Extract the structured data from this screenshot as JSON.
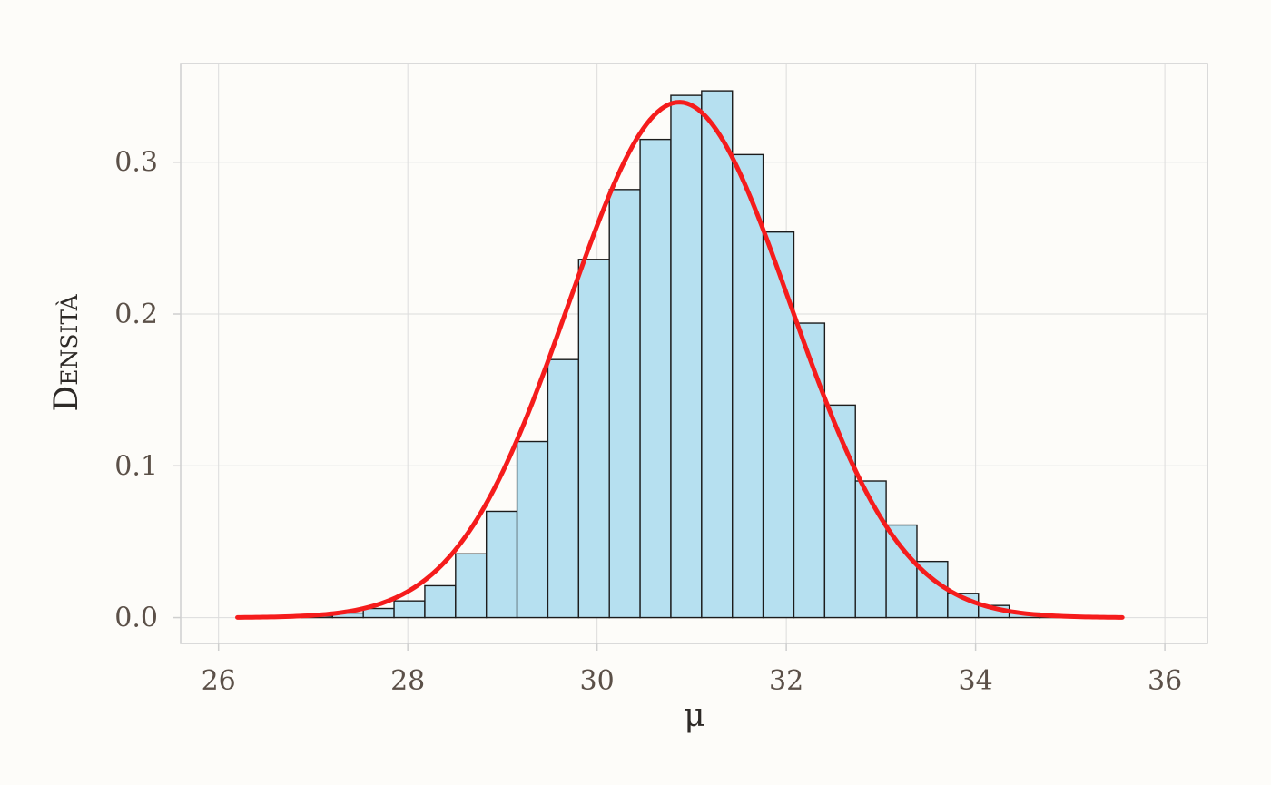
{
  "chart_data": {
    "type": "bar",
    "xlabel": "μ",
    "ylabel": "Densità",
    "xlim": [
      25.6,
      36.45
    ],
    "ylim": [
      -0.017,
      0.365
    ],
    "x_ticks": [
      26,
      28,
      30,
      32,
      34,
      36
    ],
    "x_tick_labels": [
      "26",
      "28",
      "30",
      "32",
      "34",
      "36"
    ],
    "y_ticks": [
      0.0,
      0.1,
      0.2,
      0.3
    ],
    "y_tick_labels": [
      "0.0",
      "0.1",
      "0.2",
      "0.3"
    ],
    "grid": true,
    "bin_width": 0.325,
    "bins": [
      {
        "x0": 26.23,
        "density": 0.0
      },
      {
        "x0": 26.555,
        "density": 0.0
      },
      {
        "x0": 26.88,
        "density": 0.001
      },
      {
        "x0": 27.205,
        "density": 0.003
      },
      {
        "x0": 27.53,
        "density": 0.006
      },
      {
        "x0": 27.855,
        "density": 0.011
      },
      {
        "x0": 28.18,
        "density": 0.021
      },
      {
        "x0": 28.505,
        "density": 0.042
      },
      {
        "x0": 28.83,
        "density": 0.07
      },
      {
        "x0": 29.155,
        "density": 0.116
      },
      {
        "x0": 29.48,
        "density": 0.17
      },
      {
        "x0": 29.805,
        "density": 0.236
      },
      {
        "x0": 30.13,
        "density": 0.282
      },
      {
        "x0": 30.455,
        "density": 0.315
      },
      {
        "x0": 30.78,
        "density": 0.344
      },
      {
        "x0": 31.105,
        "density": 0.347
      },
      {
        "x0": 31.43,
        "density": 0.305
      },
      {
        "x0": 31.755,
        "density": 0.254
      },
      {
        "x0": 32.08,
        "density": 0.194
      },
      {
        "x0": 32.405,
        "density": 0.14
      },
      {
        "x0": 32.73,
        "density": 0.09
      },
      {
        "x0": 33.055,
        "density": 0.061
      },
      {
        "x0": 33.38,
        "density": 0.037
      },
      {
        "x0": 33.705,
        "density": 0.016
      },
      {
        "x0": 34.03,
        "density": 0.008
      },
      {
        "x0": 34.355,
        "density": 0.003
      },
      {
        "x0": 34.68,
        "density": 0.001
      },
      {
        "x0": 35.005,
        "density": 0.001
      },
      {
        "x0": 35.33,
        "density": 0.0
      }
    ],
    "density_curve": {
      "mean": 30.87,
      "sd": 1.175,
      "x_range": [
        26.2,
        35.55
      ]
    },
    "colors": {
      "bar_fill": "#b6e0f0",
      "bar_stroke": "#1c1c1c",
      "curve": "#f51c1c",
      "grid": "#dcdcdc",
      "panel_border": "#cfcfcf",
      "tick_text": "#5b5048",
      "axis_title": "#2e2a27",
      "background": "#fdfcf9"
    }
  }
}
